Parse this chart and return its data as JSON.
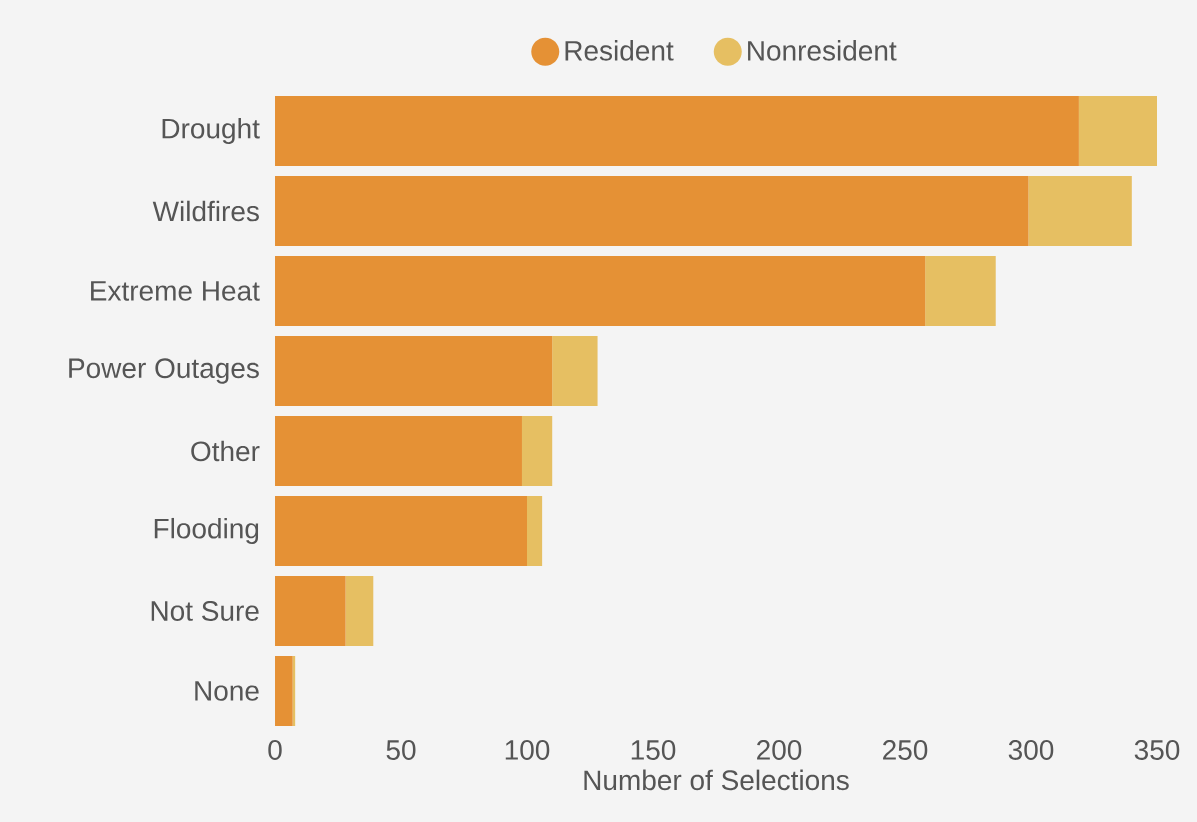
{
  "chart_data": {
    "type": "bar",
    "orientation": "horizontal",
    "stacked": true,
    "xlabel": "Number of Selections",
    "categories": [
      "Drought",
      "Wildfires",
      "Extreme Heat",
      "Power Outages",
      "Other",
      "Flooding",
      "Not Sure",
      "None"
    ],
    "series": [
      {
        "name": "Resident",
        "color": "#e59135",
        "values": [
          319,
          299,
          258,
          110,
          98,
          100,
          28,
          7
        ]
      },
      {
        "name": "Nonresident",
        "color": "#e6bf62",
        "values": [
          31,
          41,
          28,
          18,
          12,
          6,
          11,
          1
        ]
      }
    ],
    "xlim": [
      0,
      350
    ],
    "xticks": [
      0,
      50,
      100,
      150,
      200,
      250,
      300,
      350
    ],
    "grid": false,
    "legend": "top"
  }
}
